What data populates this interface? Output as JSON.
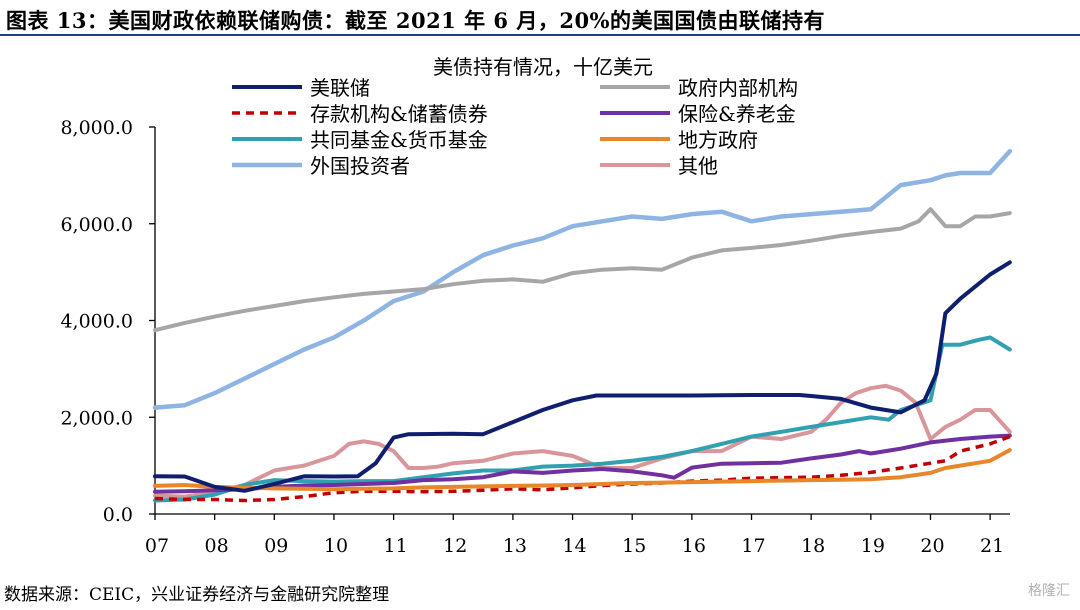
{
  "page": {
    "title": "图表 13：美国财政依赖联储购债：截至 2021 年 6 月，20%的美国国债由联储持有",
    "source": "数据来源：CEIC，兴业证券经济与金融研究院整理",
    "watermark": "格隆汇"
  },
  "chart_data": {
    "type": "line",
    "title": "美债持有情况，十亿美元",
    "xlabel": "",
    "ylabel": "",
    "ylim": [
      0,
      8000
    ],
    "xlim": [
      2007,
      2021.333
    ],
    "x_ticks": [
      "07",
      "08",
      "09",
      "10",
      "11",
      "12",
      "13",
      "14",
      "15",
      "16",
      "17",
      "18",
      "19",
      "20",
      "21"
    ],
    "x_tick_values": [
      2007,
      2008,
      2009,
      2010,
      2011,
      2012,
      2013,
      2014,
      2015,
      2016,
      2017,
      2018,
      2019,
      2020,
      2021
    ],
    "y_ticks": [
      "0.0",
      "2,000.0",
      "4,000.0",
      "6,000.0",
      "8,000.0"
    ],
    "y_tick_values": [
      0,
      2000,
      4000,
      6000,
      8000
    ],
    "legend_position": "top",
    "series": [
      {
        "name": "美联储",
        "color": "#0f1f6e",
        "dash": "solid",
        "width": 4,
        "points": [
          [
            2007,
            780
          ],
          [
            2007.5,
            775
          ],
          [
            2008,
            560
          ],
          [
            2008.5,
            480
          ],
          [
            2009,
            620
          ],
          [
            2009.5,
            780
          ],
          [
            2010,
            775
          ],
          [
            2010.4,
            780
          ],
          [
            2010.7,
            1050
          ],
          [
            2011,
            1580
          ],
          [
            2011.25,
            1650
          ],
          [
            2012,
            1660
          ],
          [
            2012.5,
            1650
          ],
          [
            2013,
            1900
          ],
          [
            2013.5,
            2150
          ],
          [
            2014,
            2350
          ],
          [
            2014.4,
            2450
          ],
          [
            2015,
            2450
          ],
          [
            2016,
            2450
          ],
          [
            2017,
            2460
          ],
          [
            2017.8,
            2460
          ],
          [
            2018,
            2440
          ],
          [
            2018.5,
            2380
          ],
          [
            2019,
            2200
          ],
          [
            2019.5,
            2100
          ],
          [
            2019.9,
            2350
          ],
          [
            2020.1,
            2900
          ],
          [
            2020.25,
            4150
          ],
          [
            2020.5,
            4450
          ],
          [
            2021,
            4950
          ],
          [
            2021.33,
            5200
          ]
        ]
      },
      {
        "name": "政府内部机构",
        "color": "#a6a6a6",
        "dash": "solid",
        "width": 4,
        "points": [
          [
            2007,
            3800
          ],
          [
            2007.5,
            3950
          ],
          [
            2008,
            4080
          ],
          [
            2008.5,
            4200
          ],
          [
            2009,
            4300
          ],
          [
            2009.5,
            4400
          ],
          [
            2010,
            4480
          ],
          [
            2010.5,
            4550
          ],
          [
            2011,
            4600
          ],
          [
            2011.5,
            4650
          ],
          [
            2012,
            4750
          ],
          [
            2012.5,
            4820
          ],
          [
            2013,
            4850
          ],
          [
            2013.5,
            4800
          ],
          [
            2014,
            4980
          ],
          [
            2014.5,
            5050
          ],
          [
            2015,
            5080
          ],
          [
            2015.5,
            5050
          ],
          [
            2016,
            5300
          ],
          [
            2016.5,
            5450
          ],
          [
            2017,
            5500
          ],
          [
            2017.5,
            5560
          ],
          [
            2018,
            5650
          ],
          [
            2018.5,
            5750
          ],
          [
            2019,
            5830
          ],
          [
            2019.5,
            5900
          ],
          [
            2019.8,
            6050
          ],
          [
            2020,
            6300
          ],
          [
            2020.25,
            5950
          ],
          [
            2020.5,
            5950
          ],
          [
            2020.75,
            6150
          ],
          [
            2021,
            6150
          ],
          [
            2021.33,
            6220
          ]
        ]
      },
      {
        "name": "存款机构&储蓄债券",
        "color": "#c00000",
        "dash": "8,6",
        "width": 3.5,
        "points": [
          [
            2007,
            320
          ],
          [
            2007.5,
            300
          ],
          [
            2008,
            300
          ],
          [
            2008.5,
            280
          ],
          [
            2009,
            300
          ],
          [
            2009.5,
            360
          ],
          [
            2010,
            440
          ],
          [
            2010.5,
            470
          ],
          [
            2011,
            470
          ],
          [
            2011.5,
            460
          ],
          [
            2012,
            470
          ],
          [
            2012.5,
            490
          ],
          [
            2013,
            520
          ],
          [
            2013.5,
            500
          ],
          [
            2014,
            540
          ],
          [
            2014.5,
            590
          ],
          [
            2015,
            620
          ],
          [
            2015.5,
            640
          ],
          [
            2016,
            680
          ],
          [
            2016.5,
            700
          ],
          [
            2017,
            740
          ],
          [
            2017.5,
            750
          ],
          [
            2018,
            760
          ],
          [
            2018.5,
            800
          ],
          [
            2019,
            860
          ],
          [
            2019.5,
            950
          ],
          [
            2020,
            1050
          ],
          [
            2020.25,
            1100
          ],
          [
            2020.5,
            1300
          ],
          [
            2021,
            1450
          ],
          [
            2021.33,
            1600
          ]
        ]
      },
      {
        "name": "保险&养老金",
        "color": "#7030a0",
        "dash": "solid",
        "width": 4,
        "points": [
          [
            2007,
            460
          ],
          [
            2007.5,
            470
          ],
          [
            2008,
            490
          ],
          [
            2008.5,
            510
          ],
          [
            2009,
            560
          ],
          [
            2009.5,
            590
          ],
          [
            2010,
            600
          ],
          [
            2010.5,
            620
          ],
          [
            2011,
            640
          ],
          [
            2011.5,
            700
          ],
          [
            2012,
            720
          ],
          [
            2012.5,
            760
          ],
          [
            2013,
            880
          ],
          [
            2013.5,
            850
          ],
          [
            2014,
            900
          ],
          [
            2014.5,
            930
          ],
          [
            2015,
            880
          ],
          [
            2015.5,
            800
          ],
          [
            2015.7,
            750
          ],
          [
            2016,
            960
          ],
          [
            2016.5,
            1040
          ],
          [
            2017,
            1050
          ],
          [
            2017.5,
            1060
          ],
          [
            2018,
            1150
          ],
          [
            2018.5,
            1230
          ],
          [
            2018.8,
            1300
          ],
          [
            2019,
            1250
          ],
          [
            2019.5,
            1350
          ],
          [
            2020,
            1480
          ],
          [
            2020.5,
            1550
          ],
          [
            2021,
            1600
          ],
          [
            2021.33,
            1620
          ]
        ]
      },
      {
        "name": "共同基金&货币基金",
        "color": "#31a0b0",
        "dash": "solid",
        "width": 4,
        "points": [
          [
            2007,
            280
          ],
          [
            2007.5,
            300
          ],
          [
            2008,
            400
          ],
          [
            2008.5,
            600
          ],
          [
            2009,
            700
          ],
          [
            2009.5,
            680
          ],
          [
            2010,
            670
          ],
          [
            2010.5,
            680
          ],
          [
            2011,
            680
          ],
          [
            2011.5,
            760
          ],
          [
            2012,
            840
          ],
          [
            2012.5,
            900
          ],
          [
            2013,
            900
          ],
          [
            2013.5,
            980
          ],
          [
            2014,
            1000
          ],
          [
            2014.5,
            1040
          ],
          [
            2015,
            1100
          ],
          [
            2015.5,
            1180
          ],
          [
            2016,
            1300
          ],
          [
            2016.5,
            1450
          ],
          [
            2017,
            1600
          ],
          [
            2017.5,
            1700
          ],
          [
            2018,
            1800
          ],
          [
            2018.5,
            1900
          ],
          [
            2019,
            2000
          ],
          [
            2019.3,
            1950
          ],
          [
            2019.5,
            2150
          ],
          [
            2020,
            2350
          ],
          [
            2020.2,
            3500
          ],
          [
            2020.5,
            3500
          ],
          [
            2020.8,
            3600
          ],
          [
            2021,
            3650
          ],
          [
            2021.33,
            3400
          ]
        ]
      },
      {
        "name": "地方政府",
        "color": "#e8862a",
        "dash": "solid",
        "width": 4,
        "points": [
          [
            2007,
            580
          ],
          [
            2007.5,
            600
          ],
          [
            2008,
            560
          ],
          [
            2008.5,
            540
          ],
          [
            2009,
            530
          ],
          [
            2009.5,
            520
          ],
          [
            2010,
            510
          ],
          [
            2010.5,
            520
          ],
          [
            2011,
            530
          ],
          [
            2011.5,
            550
          ],
          [
            2012,
            560
          ],
          [
            2012.5,
            570
          ],
          [
            2013,
            580
          ],
          [
            2013.5,
            590
          ],
          [
            2014,
            600
          ],
          [
            2014.5,
            620
          ],
          [
            2015,
            640
          ],
          [
            2015.5,
            650
          ],
          [
            2016,
            660
          ],
          [
            2016.5,
            670
          ],
          [
            2017,
            680
          ],
          [
            2017.5,
            690
          ],
          [
            2018,
            700
          ],
          [
            2018.5,
            710
          ],
          [
            2019,
            720
          ],
          [
            2019.5,
            760
          ],
          [
            2020,
            850
          ],
          [
            2020.25,
            950
          ],
          [
            2020.5,
            1000
          ],
          [
            2021,
            1100
          ],
          [
            2021.33,
            1320
          ]
        ]
      },
      {
        "name": "外国投资者",
        "color": "#8eb4e3",
        "dash": "solid",
        "width": 4.5,
        "points": [
          [
            2007,
            2200
          ],
          [
            2007.5,
            2250
          ],
          [
            2008,
            2500
          ],
          [
            2008.5,
            2800
          ],
          [
            2009,
            3100
          ],
          [
            2009.5,
            3400
          ],
          [
            2010,
            3650
          ],
          [
            2010.5,
            4000
          ],
          [
            2011,
            4400
          ],
          [
            2011.5,
            4600
          ],
          [
            2012,
            5000
          ],
          [
            2012.5,
            5350
          ],
          [
            2013,
            5550
          ],
          [
            2013.5,
            5700
          ],
          [
            2014,
            5950
          ],
          [
            2014.5,
            6050
          ],
          [
            2015,
            6150
          ],
          [
            2015.5,
            6100
          ],
          [
            2016,
            6200
          ],
          [
            2016.5,
            6250
          ],
          [
            2017,
            6050
          ],
          [
            2017.5,
            6150
          ],
          [
            2018,
            6200
          ],
          [
            2018.5,
            6250
          ],
          [
            2019,
            6300
          ],
          [
            2019.5,
            6800
          ],
          [
            2020,
            6900
          ],
          [
            2020.25,
            7000
          ],
          [
            2020.5,
            7050
          ],
          [
            2021,
            7050
          ],
          [
            2021.33,
            7500
          ]
        ]
      },
      {
        "name": "其他",
        "color": "#d9969a",
        "dash": "solid",
        "width": 4,
        "points": [
          [
            2007,
            380
          ],
          [
            2007.5,
            360
          ],
          [
            2008,
            450
          ],
          [
            2008.5,
            600
          ],
          [
            2009,
            900
          ],
          [
            2009.25,
            950
          ],
          [
            2009.5,
            1000
          ],
          [
            2010,
            1200
          ],
          [
            2010.25,
            1450
          ],
          [
            2010.5,
            1500
          ],
          [
            2010.75,
            1450
          ],
          [
            2011,
            1300
          ],
          [
            2011.25,
            950
          ],
          [
            2011.5,
            950
          ],
          [
            2011.75,
            980
          ],
          [
            2012,
            1050
          ],
          [
            2012.5,
            1100
          ],
          [
            2013,
            1250
          ],
          [
            2013.5,
            1300
          ],
          [
            2014,
            1200
          ],
          [
            2014.5,
            950
          ],
          [
            2015,
            950
          ],
          [
            2015.5,
            1150
          ],
          [
            2016,
            1300
          ],
          [
            2016.5,
            1300
          ],
          [
            2017,
            1600
          ],
          [
            2017.5,
            1550
          ],
          [
            2018,
            1700
          ],
          [
            2018.25,
            1950
          ],
          [
            2018.5,
            2300
          ],
          [
            2018.75,
            2500
          ],
          [
            2019,
            2600
          ],
          [
            2019.25,
            2650
          ],
          [
            2019.5,
            2550
          ],
          [
            2019.75,
            2300
          ],
          [
            2020,
            1550
          ],
          [
            2020.25,
            1800
          ],
          [
            2020.5,
            1950
          ],
          [
            2020.75,
            2150
          ],
          [
            2021,
            2150
          ],
          [
            2021.33,
            1700
          ]
        ]
      }
    ]
  }
}
